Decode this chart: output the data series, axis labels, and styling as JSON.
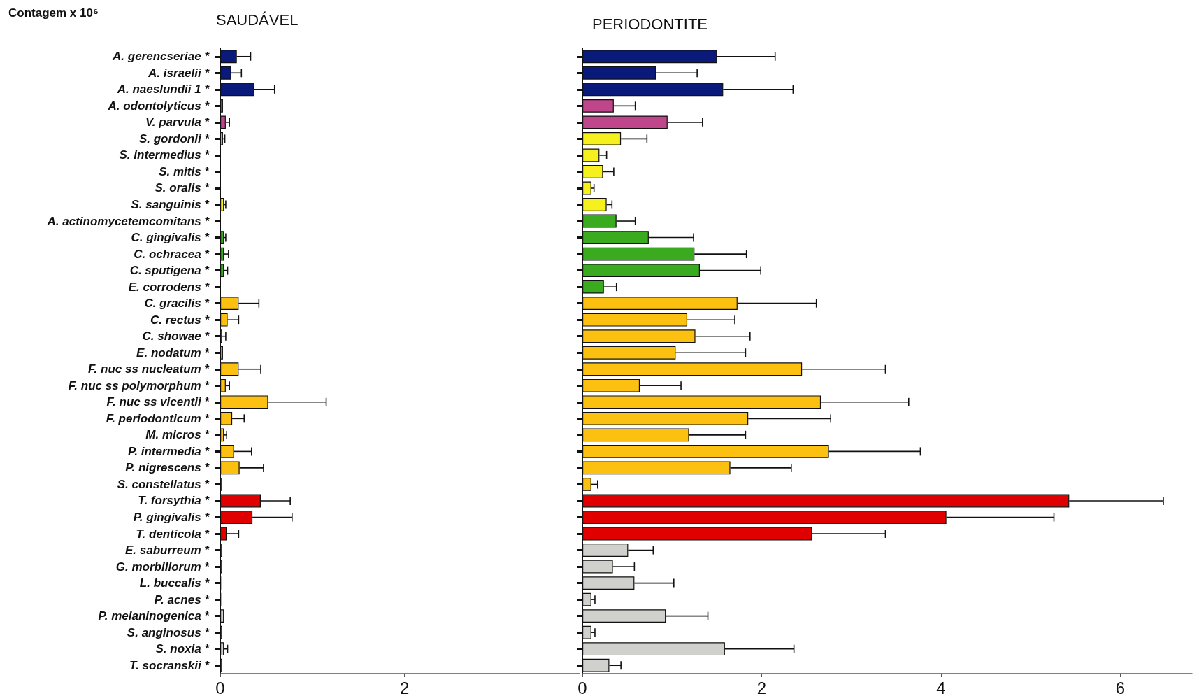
{
  "chart_data": [
    {
      "type": "bar",
      "orientation": "horizontal",
      "title": "SAUDÁVEL",
      "annotations": [
        "Contagem x 10⁶"
      ],
      "categories": [
        "A. gerencseriae *",
        "A. israelii *",
        "A. naeslundii 1 *",
        "A. odontolyticus *",
        "V. parvula *",
        "S. gordonii *",
        "S. intermedius *",
        "S. mitis *",
        "S. oralis *",
        "S. sanguinis *",
        "A. actinomycetemcomitans *",
        "C. gingivalis *",
        "C. ochracea *",
        "C. sputigena *",
        "E. corrodens *",
        "C. gracilis *",
        "C. rectus *",
        "C. showae *",
        "E. nodatum *",
        "F. nuc ss nucleatum *",
        "F. nuc ss polymorphum *",
        "F. nuc ss vicentii *",
        "F. periodonticum *",
        "M. micros *",
        "P. intermedia *",
        "P. nigrescens *",
        "S. constellatus *",
        "T. forsythia *",
        "P. gingivalis *",
        "T. denticola *",
        "E. saburreum *",
        "G. morbillorum *",
        "L. buccalis *",
        "P. acnes *",
        "P. melaninogenica *",
        "S. anginosus *",
        "S. noxia *",
        "T. socranskii *"
      ],
      "values": [
        0.18,
        0.12,
        0.37,
        0.03,
        0.06,
        0.03,
        null,
        null,
        null,
        0.04,
        null,
        0.04,
        0.04,
        0.04,
        null,
        0.2,
        0.08,
        0.02,
        0.03,
        0.2,
        0.06,
        0.52,
        0.13,
        0.04,
        0.15,
        0.21,
        0.02,
        0.44,
        0.35,
        0.07,
        0.02,
        0.02,
        0.01,
        0.01,
        0.04,
        0.02,
        0.04,
        0.02
      ],
      "errors": [
        0.15,
        0.11,
        0.22,
        null,
        0.04,
        0.02,
        null,
        null,
        null,
        0.02,
        null,
        0.02,
        0.05,
        0.04,
        null,
        0.22,
        0.12,
        0.04,
        null,
        0.24,
        0.04,
        0.63,
        0.13,
        0.03,
        0.19,
        0.26,
        null,
        0.32,
        0.43,
        0.13,
        null,
        null,
        null,
        null,
        null,
        null,
        0.04,
        null
      ],
      "colors": [
        "#0a1a7a",
        "#0a1a7a",
        "#0a1a7a",
        "#c0468c",
        "#c0468c",
        "#f5f01e",
        "#f5f01e",
        "#f5f01e",
        "#f5f01e",
        "#f5f01e",
        "#3aaa1e",
        "#3aaa1e",
        "#3aaa1e",
        "#3aaa1e",
        "#3aaa1e",
        "#fcc010",
        "#fcc010",
        "#fcc010",
        "#fcc010",
        "#fcc010",
        "#fcc010",
        "#fcc010",
        "#fcc010",
        "#fcc010",
        "#fcc010",
        "#fcc010",
        "#fcc010",
        "#e00000",
        "#e00000",
        "#e00000",
        "#d0d0cc",
        "#d0d0cc",
        "#d0d0cc",
        "#d0d0cc",
        "#d0d0cc",
        "#d0d0cc",
        "#d0d0cc",
        "#d0d0cc"
      ],
      "xlim": [
        0,
        3.9
      ],
      "xticks": [
        0,
        2
      ],
      "grid": false
    },
    {
      "type": "bar",
      "orientation": "horizontal",
      "title": "PERIODONTITE",
      "tick_labels": "x",
      "categories": [
        null,
        null,
        null,
        null,
        null,
        null,
        null,
        null,
        null,
        null,
        null,
        null,
        null,
        null,
        null,
        null,
        null,
        null,
        null,
        null,
        null,
        null,
        null,
        null,
        null,
        null,
        null,
        null,
        null,
        null,
        null,
        null,
        null,
        null,
        null,
        null,
        null,
        null
      ],
      "values": [
        1.5,
        0.82,
        1.57,
        0.35,
        0.95,
        0.43,
        0.19,
        0.23,
        0.1,
        0.27,
        0.38,
        0.74,
        1.25,
        1.31,
        0.24,
        1.73,
        1.17,
        1.26,
        1.04,
        2.45,
        0.64,
        2.66,
        1.85,
        1.19,
        2.75,
        1.65,
        0.1,
        5.43,
        4.06,
        2.56,
        0.51,
        0.34,
        0.58,
        0.1,
        0.93,
        0.1,
        1.59,
        0.3
      ],
      "errors": [
        0.65,
        0.46,
        0.78,
        0.24,
        0.39,
        0.29,
        0.08,
        0.12,
        0.03,
        0.06,
        0.21,
        0.5,
        0.58,
        0.68,
        0.14,
        0.88,
        0.53,
        0.61,
        0.78,
        0.93,
        0.46,
        0.98,
        0.92,
        0.63,
        1.02,
        0.68,
        0.07,
        1.05,
        1.2,
        0.82,
        0.28,
        0.24,
        0.44,
        0.04,
        0.47,
        0.04,
        0.77,
        0.13
      ],
      "colors": [
        "#0a1a7a",
        "#0a1a7a",
        "#0a1a7a",
        "#c0468c",
        "#c0468c",
        "#f5f01e",
        "#f5f01e",
        "#f5f01e",
        "#f5f01e",
        "#f5f01e",
        "#3aaa1e",
        "#3aaa1e",
        "#3aaa1e",
        "#3aaa1e",
        "#3aaa1e",
        "#fcc010",
        "#fcc010",
        "#fcc010",
        "#fcc010",
        "#fcc010",
        "#fcc010",
        "#fcc010",
        "#fcc010",
        "#fcc010",
        "#fcc010",
        "#fcc010",
        "#fcc010",
        "#e00000",
        "#e00000",
        "#e00000",
        "#d0d0cc",
        "#d0d0cc",
        "#d0d0cc",
        "#d0d0cc",
        "#d0d0cc",
        "#d0d0cc",
        "#d0d0cc",
        "#d0d0cc"
      ],
      "xlim": [
        0,
        6.8
      ],
      "xticks": [
        0,
        2,
        4,
        6
      ],
      "grid": false
    }
  ]
}
